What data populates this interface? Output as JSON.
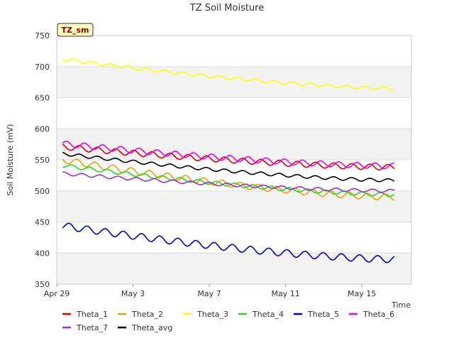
{
  "chart_data": {
    "type": "line",
    "title": "TZ Soil Moisture",
    "badge": "TZ_sm",
    "xlabel": "Time",
    "ylabel": "Soil Moisture (mV)",
    "ylim": [
      350,
      750
    ],
    "yticks": [
      350,
      400,
      450,
      500,
      550,
      600,
      650,
      700,
      750
    ],
    "xlim": [
      0,
      18.6
    ],
    "xticks": [
      {
        "label": "Apr 29",
        "value": 0
      },
      {
        "label": "May 3",
        "value": 4
      },
      {
        "label": "May 7",
        "value": 8
      },
      {
        "label": "May 11",
        "value": 12
      },
      {
        "label": "May 15",
        "value": 16
      }
    ],
    "x_start": 0.3,
    "x_end": 17.7,
    "series": [
      {
        "name": "Theta_1",
        "color": "#e00000",
        "start": 571,
        "end": 538,
        "amp": 4.5
      },
      {
        "name": "Theta_2",
        "color": "#f0a000",
        "start": 550,
        "end": 490,
        "amp": 5
      },
      {
        "name": "Theta_3",
        "color": "#ffff00",
        "start": 712,
        "end": 665,
        "amp": 2.5
      },
      {
        "name": "Theta_4",
        "color": "#22dd22",
        "start": 541,
        "end": 494,
        "amp": 3
      },
      {
        "name": "Theta_5",
        "color": "#0000cc",
        "start": 444,
        "end": 390,
        "amp": 5.5
      },
      {
        "name": "Theta_6",
        "color": "#ee00ee",
        "start": 576,
        "end": 540,
        "amp": 4.5
      },
      {
        "name": "Theta_7",
        "color": "#9933cc",
        "start": 528,
        "end": 500,
        "amp": 2.5
      },
      {
        "name": "Theta_avg",
        "color": "#000000",
        "start": 560,
        "end": 517,
        "amp": 2.5
      }
    ]
  }
}
